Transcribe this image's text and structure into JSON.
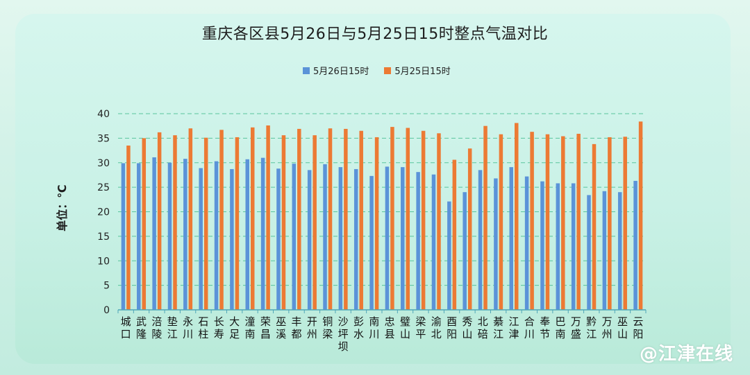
{
  "title": "重庆各区县5月26日与5月25日15时整点气温对比",
  "y_axis_label": "单位：℃",
  "watermark": "@江津在线",
  "colors": {
    "series_a": "#5b93d8",
    "series_b": "#ec7a34",
    "grid": "#3cb98a",
    "axis": "#4fa6b8"
  },
  "chart_data": {
    "type": "bar",
    "title": "重庆各区县5月26日与5月25日15时整点气温对比",
    "ylabel": "单位：℃",
    "ylim": [
      0,
      40
    ],
    "yticks": [
      "0",
      "5",
      "10",
      "15",
      "20",
      "25",
      "30",
      "35",
      "40"
    ],
    "grid": true,
    "legend_position": "top-center",
    "categories": [
      "城口",
      "武隆",
      "涪陵",
      "垫江",
      "永川",
      "石柱",
      "长寿",
      "大足",
      "潼南",
      "荣昌",
      "巫溪",
      "丰都",
      "开州",
      "铜梁",
      "沙坪坝",
      "彭水",
      "南川",
      "忠县",
      "璧山",
      "梁平",
      "渝北",
      "酉阳",
      "秀山",
      "北碚",
      "綦江",
      "江津",
      "合川",
      "奉节",
      "巴南",
      "万盛",
      "黔江",
      "万州",
      "巫山",
      "云阳"
    ],
    "series": [
      {
        "name": "5月26日15时",
        "values": [
          29.9,
          29.9,
          31.1,
          30.0,
          30.8,
          28.9,
          30.3,
          28.7,
          30.7,
          31.0,
          28.8,
          29.8,
          28.5,
          29.7,
          29.1,
          28.7,
          27.3,
          29.2,
          29.1,
          28.1,
          27.6,
          22.1,
          24.0,
          28.5,
          26.8,
          29.1,
          27.2,
          26.2,
          25.8,
          25.8,
          23.4,
          24.2,
          24.0,
          26.3
        ]
      },
      {
        "name": "5月25日15时",
        "values": [
          33.5,
          35.0,
          36.2,
          35.6,
          37.0,
          35.1,
          36.7,
          35.2,
          37.2,
          37.6,
          35.6,
          36.9,
          35.6,
          37.0,
          36.9,
          36.5,
          35.2,
          37.3,
          37.1,
          36.5,
          36.0,
          30.6,
          32.9,
          37.5,
          35.8,
          38.1,
          36.3,
          35.8,
          35.4,
          35.9,
          33.8,
          35.2,
          35.3,
          38.4
        ]
      }
    ]
  }
}
